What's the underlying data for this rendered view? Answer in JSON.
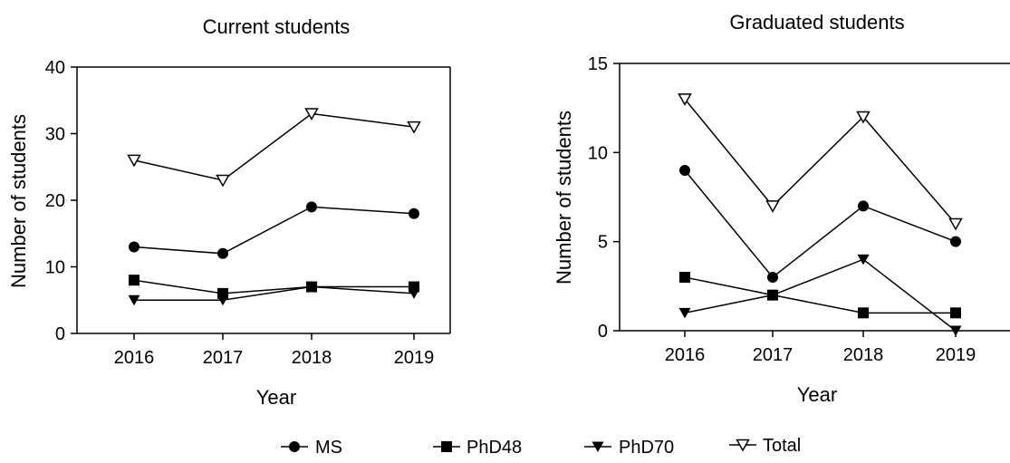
{
  "chart_data": [
    {
      "type": "line",
      "title": "Current students",
      "xlabel": "Year",
      "ylabel": "Number of students",
      "categories": [
        "2016",
        "2017",
        "2018",
        "2019"
      ],
      "ylim": [
        0,
        40
      ],
      "yticks": [
        0,
        10,
        20,
        30,
        40
      ],
      "series": [
        {
          "name": "MS",
          "marker": "circle",
          "values": [
            13,
            12,
            19,
            18
          ]
        },
        {
          "name": "PhD48",
          "marker": "square",
          "values": [
            8,
            6,
            7,
            7
          ]
        },
        {
          "name": "PhD70",
          "marker": "triangle-down",
          "values": [
            5,
            5,
            7,
            6
          ]
        },
        {
          "name": "Total",
          "marker": "triangle-down-open",
          "values": [
            26,
            23,
            33,
            31
          ]
        }
      ]
    },
    {
      "type": "line",
      "title": "Graduated students",
      "xlabel": "Year",
      "ylabel": "Number of students",
      "categories": [
        "2016",
        "2017",
        "2018",
        "2019"
      ],
      "ylim": [
        0,
        15
      ],
      "yticks": [
        0,
        5,
        10,
        15
      ],
      "series": [
        {
          "name": "MS",
          "marker": "circle",
          "values": [
            9,
            3,
            7,
            5
          ]
        },
        {
          "name": "PhD48",
          "marker": "square",
          "values": [
            3,
            2,
            1,
            1
          ]
        },
        {
          "name": "PhD70",
          "marker": "triangle-down",
          "values": [
            1,
            2,
            4,
            0
          ]
        },
        {
          "name": "Total",
          "marker": "triangle-down-open",
          "values": [
            13,
            7,
            12,
            6
          ]
        }
      ]
    }
  ],
  "legend": {
    "placement": "bottom-center",
    "items": [
      {
        "label": "MS",
        "marker": "circle"
      },
      {
        "label": "PhD48",
        "marker": "square"
      },
      {
        "label": "PhD70",
        "marker": "triangle-down"
      },
      {
        "label": "Total",
        "marker": "triangle-down-open"
      }
    ]
  },
  "colors": {
    "ink": "#000000",
    "background": "#ffffff"
  }
}
